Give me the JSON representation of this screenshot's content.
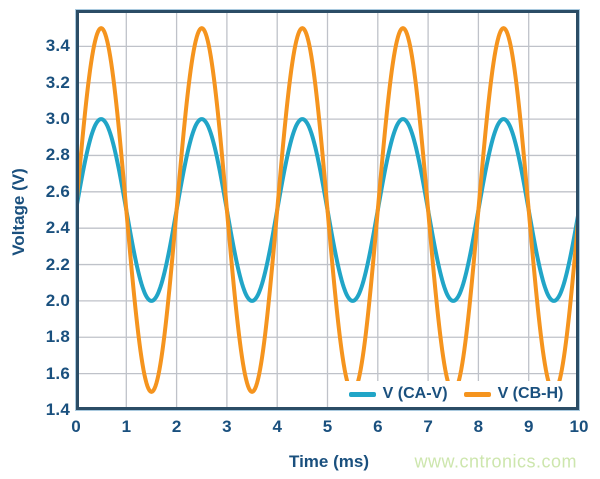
{
  "watermark": {
    "text": "www.cntronics.com",
    "color": "#cde6ad"
  },
  "chart_data": {
    "type": "line",
    "title": "",
    "xlabel": "Time (ms)",
    "ylabel": "Voltage (V)",
    "x_range": [
      0,
      10
    ],
    "y_range": [
      1.4,
      3.6
    ],
    "x_ticks": [
      "0",
      "1",
      "2",
      "3",
      "4",
      "5",
      "6",
      "7",
      "8",
      "9",
      "10"
    ],
    "y_ticks": [
      "1.4",
      "1.6",
      "1.8",
      "2.0",
      "2.2",
      "2.4",
      "2.6",
      "2.8",
      "3.0",
      "3.2",
      "3.4"
    ],
    "grid": true,
    "legend_position": "inside-bottom-right",
    "series": [
      {
        "name": "V (CA-V)",
        "color": "#21a5c7",
        "waveform": "sine",
        "mean_v": 2.5,
        "amplitude_v": 0.5,
        "min_v": 2.0,
        "max_v": 3.0,
        "period_ms": 2,
        "phase_deg": 0,
        "cycles_shown": 5,
        "first_peak_ms": 0.5
      },
      {
        "name": "V (CB-H)",
        "color": "#f5941e",
        "waveform": "sine",
        "mean_v": 2.5,
        "amplitude_v": 1.0,
        "min_v": 1.5,
        "max_v": 3.5,
        "period_ms": 2,
        "phase_deg": 0,
        "cycles_shown": 5,
        "first_peak_ms": 0.5
      }
    ],
    "colors": {
      "frame": "#2b4d66",
      "frame_halo": "#a9c9de",
      "grid": "#bfc2c9",
      "text": "#1a507e",
      "background": "#ffffff"
    }
  }
}
